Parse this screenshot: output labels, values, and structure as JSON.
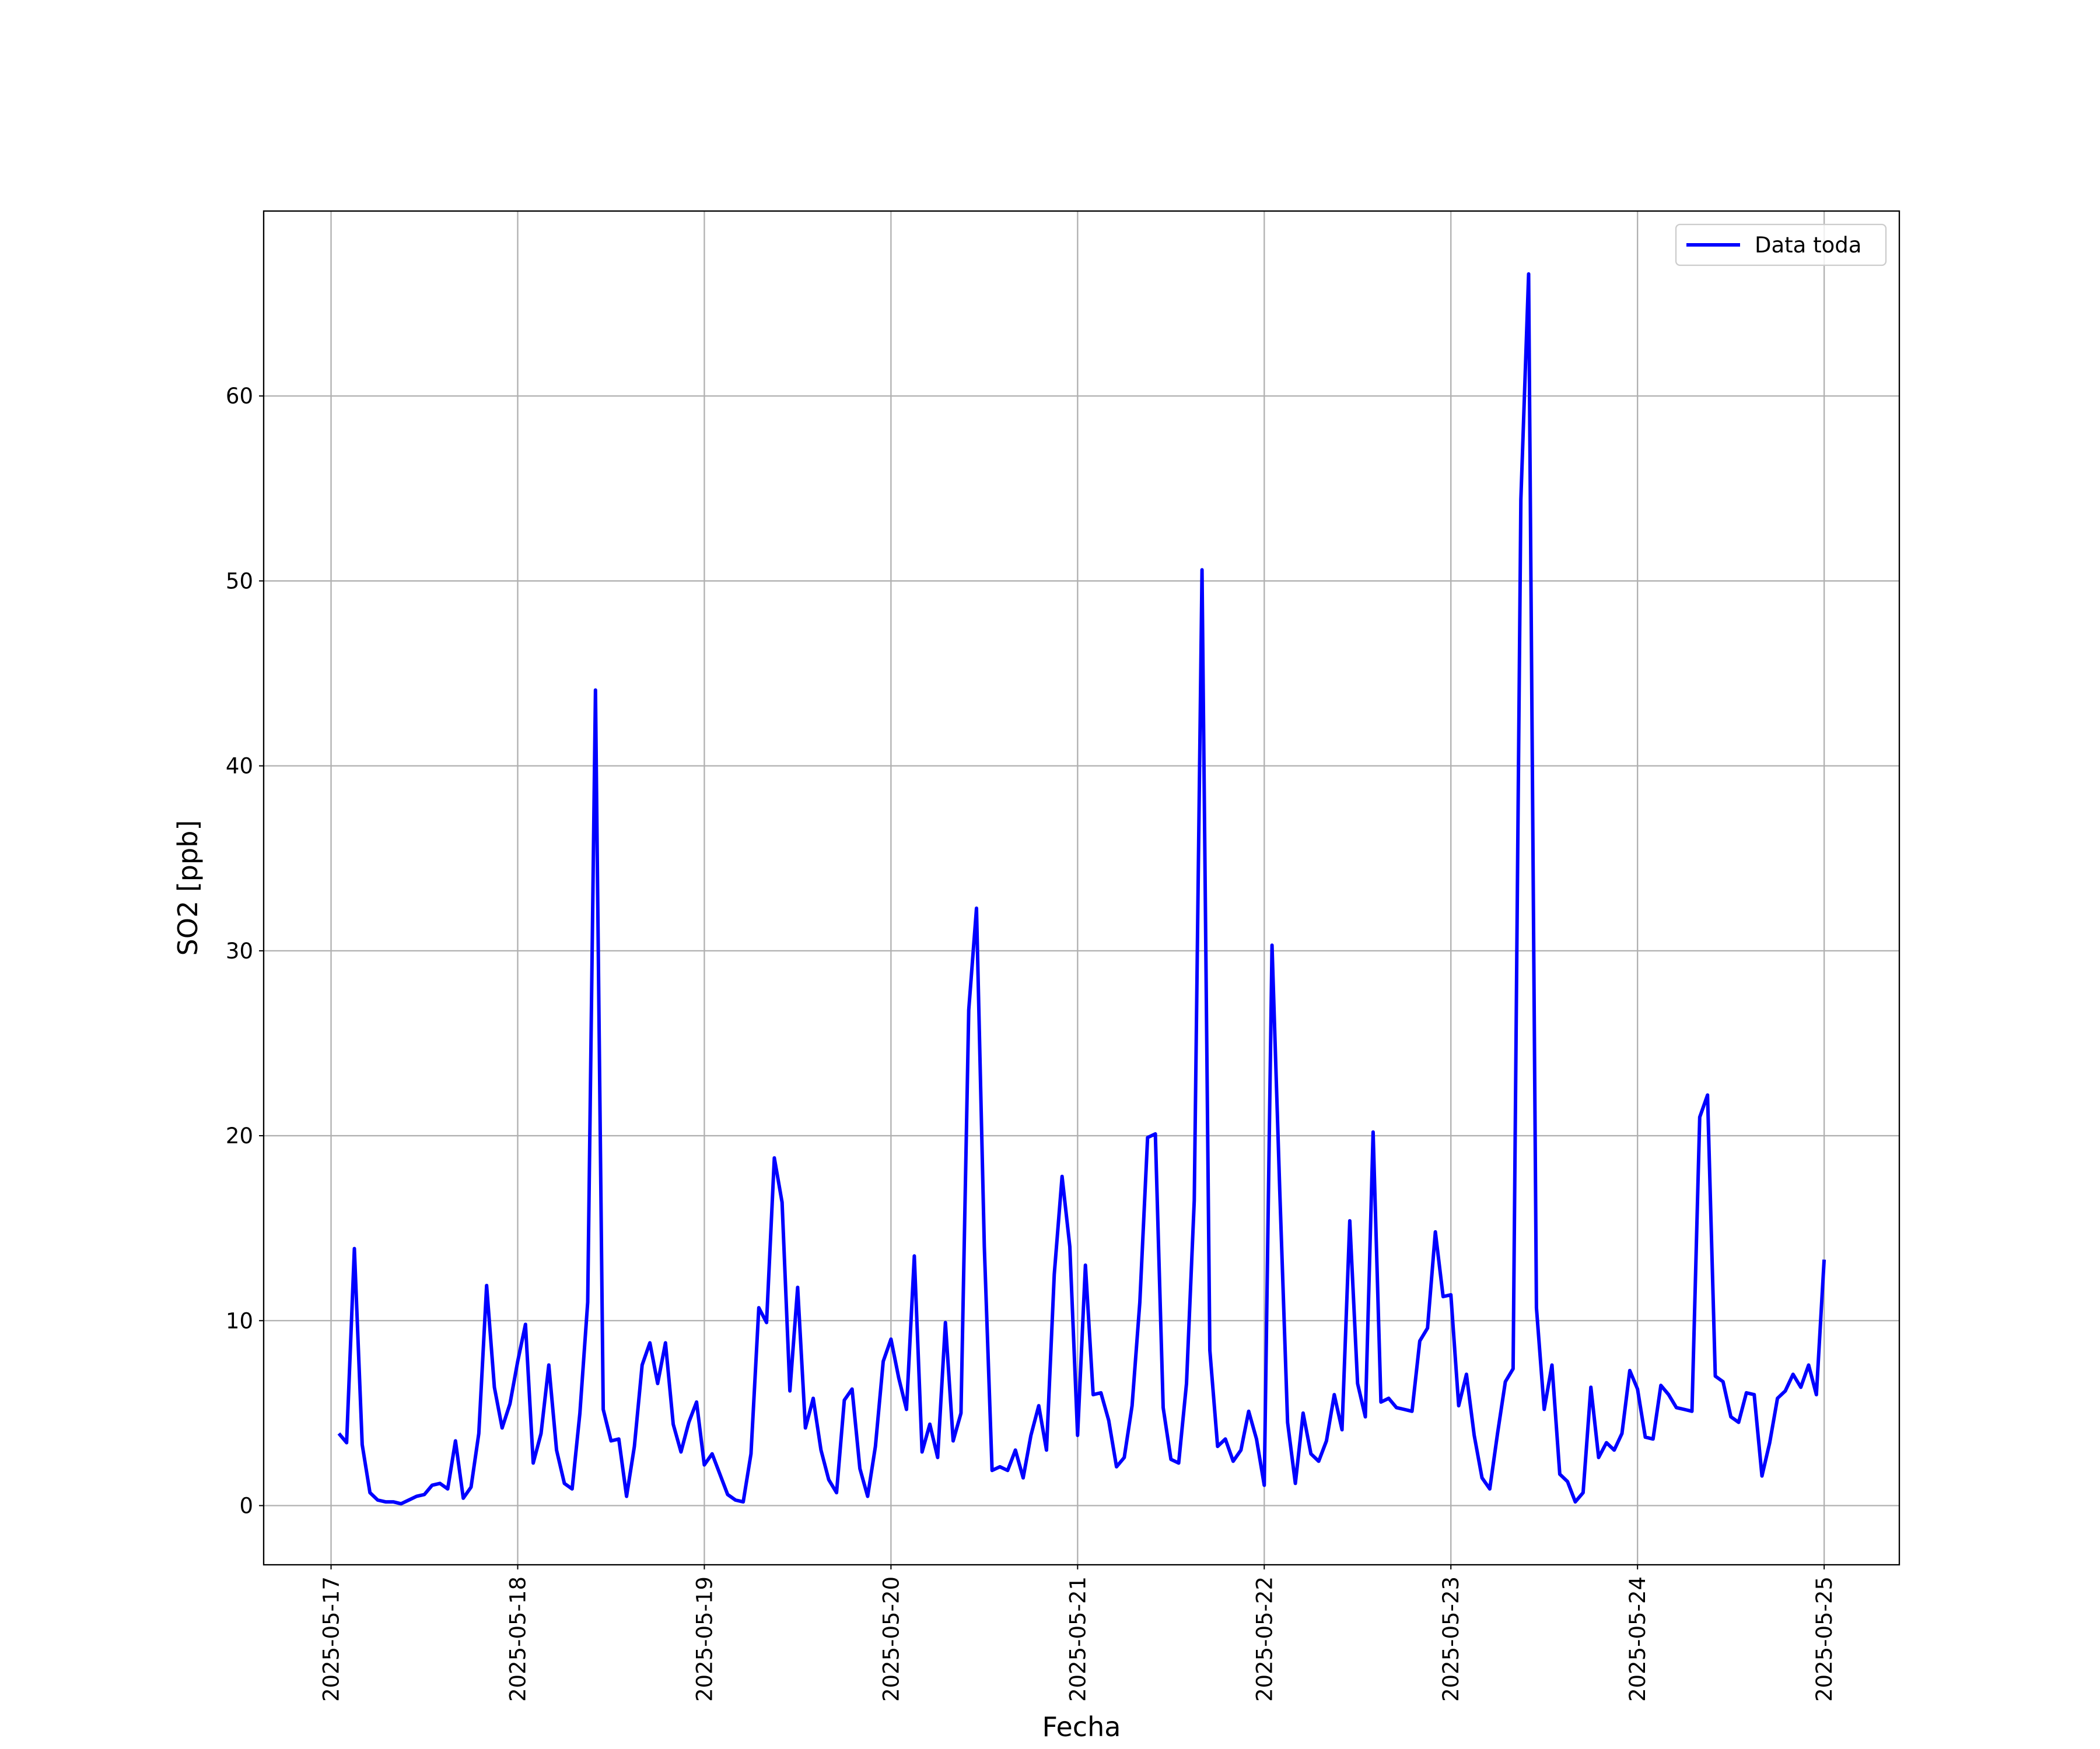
{
  "chart_data": {
    "type": "line",
    "x_label": "Fecha",
    "y_label": "SO2 [ppb]",
    "x": [
      "2025-05-17 01:00",
      "2025-05-17 02:00",
      "2025-05-17 03:00",
      "2025-05-17 04:00",
      "2025-05-17 05:00",
      "2025-05-17 06:00",
      "2025-05-17 07:00",
      "2025-05-17 08:00",
      "2025-05-17 09:00",
      "2025-05-17 10:00",
      "2025-05-17 11:00",
      "2025-05-17 12:00",
      "2025-05-17 13:00",
      "2025-05-17 14:00",
      "2025-05-17 15:00",
      "2025-05-17 16:00",
      "2025-05-17 17:00",
      "2025-05-17 18:00",
      "2025-05-17 19:00",
      "2025-05-17 20:00",
      "2025-05-17 21:00",
      "2025-05-17 22:00",
      "2025-05-17 23:00",
      "2025-05-18 00:00",
      "2025-05-18 01:00",
      "2025-05-18 02:00",
      "2025-05-18 03:00",
      "2025-05-18 04:00",
      "2025-05-18 05:00",
      "2025-05-18 06:00",
      "2025-05-18 07:00",
      "2025-05-18 08:00",
      "2025-05-18 09:00",
      "2025-05-18 10:00",
      "2025-05-18 11:00",
      "2025-05-18 12:00",
      "2025-05-18 13:00",
      "2025-05-18 14:00",
      "2025-05-18 15:00",
      "2025-05-18 16:00",
      "2025-05-18 17:00",
      "2025-05-18 18:00",
      "2025-05-18 19:00",
      "2025-05-18 20:00",
      "2025-05-18 21:00",
      "2025-05-18 22:00",
      "2025-05-18 23:00",
      "2025-05-19 00:00",
      "2025-05-19 01:00",
      "2025-05-19 02:00",
      "2025-05-19 03:00",
      "2025-05-19 04:00",
      "2025-05-19 05:00",
      "2025-05-19 06:00",
      "2025-05-19 07:00",
      "2025-05-19 08:00",
      "2025-05-19 09:00",
      "2025-05-19 10:00",
      "2025-05-19 11:00",
      "2025-05-19 12:00",
      "2025-05-19 13:00",
      "2025-05-19 14:00",
      "2025-05-19 15:00",
      "2025-05-19 16:00",
      "2025-05-19 17:00",
      "2025-05-19 18:00",
      "2025-05-19 19:00",
      "2025-05-19 20:00",
      "2025-05-19 21:00",
      "2025-05-19 22:00",
      "2025-05-19 23:00",
      "2025-05-20 00:00",
      "2025-05-20 01:00",
      "2025-05-20 02:00",
      "2025-05-20 03:00",
      "2025-05-20 04:00",
      "2025-05-20 05:00",
      "2025-05-20 06:00",
      "2025-05-20 07:00",
      "2025-05-20 08:00",
      "2025-05-20 09:00",
      "2025-05-20 10:00",
      "2025-05-20 11:00",
      "2025-05-20 12:00",
      "2025-05-20 13:00",
      "2025-05-20 14:00",
      "2025-05-20 15:00",
      "2025-05-20 16:00",
      "2025-05-20 17:00",
      "2025-05-20 18:00",
      "2025-05-20 19:00",
      "2025-05-20 20:00",
      "2025-05-20 21:00",
      "2025-05-20 22:00",
      "2025-05-20 23:00",
      "2025-05-21 00:00",
      "2025-05-21 01:00",
      "2025-05-21 02:00",
      "2025-05-21 03:00",
      "2025-05-21 04:00",
      "2025-05-21 05:00",
      "2025-05-21 06:00",
      "2025-05-21 07:00",
      "2025-05-21 08:00",
      "2025-05-21 09:00",
      "2025-05-21 10:00",
      "2025-05-21 11:00",
      "2025-05-21 12:00",
      "2025-05-21 13:00",
      "2025-05-21 14:00",
      "2025-05-21 15:00",
      "2025-05-21 16:00",
      "2025-05-21 17:00",
      "2025-05-21 18:00",
      "2025-05-21 19:00",
      "2025-05-21 20:00",
      "2025-05-21 21:00",
      "2025-05-21 22:00",
      "2025-05-21 23:00",
      "2025-05-22 00:00",
      "2025-05-22 01:00",
      "2025-05-22 02:00",
      "2025-05-22 03:00",
      "2025-05-22 04:00",
      "2025-05-22 05:00",
      "2025-05-22 06:00",
      "2025-05-22 07:00",
      "2025-05-22 08:00",
      "2025-05-22 09:00",
      "2025-05-22 10:00",
      "2025-05-22 11:00",
      "2025-05-22 12:00",
      "2025-05-22 13:00",
      "2025-05-22 14:00",
      "2025-05-22 15:00",
      "2025-05-22 16:00",
      "2025-05-22 17:00",
      "2025-05-22 18:00",
      "2025-05-22 19:00",
      "2025-05-22 20:00",
      "2025-05-22 21:00",
      "2025-05-22 22:00",
      "2025-05-22 23:00",
      "2025-05-23 00:00",
      "2025-05-23 01:00",
      "2025-05-23 02:00",
      "2025-05-23 03:00",
      "2025-05-23 04:00",
      "2025-05-23 05:00",
      "2025-05-23 06:00",
      "2025-05-23 07:00",
      "2025-05-23 08:00",
      "2025-05-23 09:00",
      "2025-05-23 10:00",
      "2025-05-23 11:00",
      "2025-05-23 12:00",
      "2025-05-23 13:00",
      "2025-05-23 14:00",
      "2025-05-23 15:00",
      "2025-05-23 16:00",
      "2025-05-23 17:00",
      "2025-05-23 18:00",
      "2025-05-23 19:00",
      "2025-05-23 20:00",
      "2025-05-23 21:00",
      "2025-05-23 22:00",
      "2025-05-23 23:00",
      "2025-05-24 00:00",
      "2025-05-24 01:00",
      "2025-05-24 02:00",
      "2025-05-24 03:00",
      "2025-05-24 04:00",
      "2025-05-24 05:00",
      "2025-05-24 06:00",
      "2025-05-24 07:00",
      "2025-05-24 08:00",
      "2025-05-24 09:00",
      "2025-05-24 10:00",
      "2025-05-24 11:00",
      "2025-05-24 12:00",
      "2025-05-24 13:00",
      "2025-05-24 14:00",
      "2025-05-24 15:00",
      "2025-05-24 16:00",
      "2025-05-24 17:00",
      "2025-05-24 18:00",
      "2025-05-24 19:00",
      "2025-05-24 20:00",
      "2025-05-24 21:00",
      "2025-05-24 22:00",
      "2025-05-24 23:00",
      "2025-05-25 00:00"
    ],
    "series": [
      {
        "name": "Data toda",
        "color": "#0000ff",
        "values": [
          3.9,
          3.4,
          13.9,
          3.3,
          0.7,
          0.3,
          0.2,
          0.2,
          0.1,
          0.3,
          0.5,
          0.6,
          1.1,
          1.2,
          0.9,
          3.5,
          0.4,
          1.0,
          3.9,
          11.9,
          6.4,
          4.2,
          5.5,
          7.8,
          9.8,
          2.3,
          3.9,
          7.6,
          3.0,
          1.2,
          0.9,
          5.0,
          11.0,
          44.1,
          5.2,
          3.5,
          3.6,
          0.5,
          3.2,
          7.6,
          8.8,
          6.6,
          8.8,
          4.4,
          2.9,
          4.5,
          5.6,
          2.2,
          2.8,
          1.7,
          0.6,
          0.3,
          0.2,
          2.8,
          10.7,
          9.9,
          18.8,
          16.4,
          6.2,
          11.8,
          4.2,
          5.8,
          3.0,
          1.4,
          0.7,
          5.7,
          6.3,
          2.0,
          0.5,
          3.2,
          7.8,
          9.0,
          6.9,
          5.2,
          13.5,
          2.9,
          4.4,
          2.6,
          9.9,
          3.5,
          5.0,
          26.8,
          32.3,
          14.0,
          1.9,
          2.1,
          1.9,
          3.0,
          1.5,
          3.8,
          5.4,
          3.0,
          12.5,
          17.8,
          14.0,
          3.8,
          13.0,
          6.0,
          6.1,
          4.6,
          2.1,
          2.6,
          5.4,
          11.0,
          19.9,
          20.1,
          5.3,
          2.5,
          2.3,
          6.6,
          16.5,
          50.6,
          8.4,
          3.2,
          3.6,
          2.4,
          3.0,
          5.1,
          3.6,
          1.1,
          30.3,
          17.0,
          4.5,
          1.2,
          5.0,
          2.8,
          2.4,
          3.5,
          6.0,
          4.1,
          15.4,
          6.6,
          4.8,
          20.2,
          5.6,
          5.8,
          5.3,
          5.2,
          5.1,
          8.9,
          9.6,
          14.8,
          11.3,
          11.4,
          5.4,
          7.1,
          3.8,
          1.5,
          0.9,
          3.9,
          6.7,
          7.4,
          54.4,
          66.6,
          10.7,
          5.2,
          7.6,
          1.7,
          1.3,
          0.2,
          0.7,
          6.4,
          2.6,
          3.4,
          3.0,
          3.9,
          7.3,
          6.3,
          3.7,
          3.6,
          6.5,
          6.0,
          5.3,
          5.2,
          5.1,
          21.0,
          22.2,
          7.0,
          6.7,
          4.8,
          4.5,
          6.1,
          6.0,
          1.6,
          3.4,
          5.8,
          6.2,
          7.1,
          6.4,
          7.6,
          6.0,
          13.3
        ]
      }
    ],
    "xlim": [
      "2025-05-16 15:20",
      "2025-05-25 09:40"
    ],
    "xticks": [
      "2025-05-17",
      "2025-05-18",
      "2025-05-19",
      "2025-05-20",
      "2025-05-21",
      "2025-05-22",
      "2025-05-23",
      "2025-05-24",
      "2025-05-25"
    ],
    "ylim": [
      -3.2,
      70
    ],
    "yticks": [
      0,
      10,
      20,
      30,
      40,
      50,
      60
    ],
    "grid": true,
    "legend": "upper right"
  }
}
